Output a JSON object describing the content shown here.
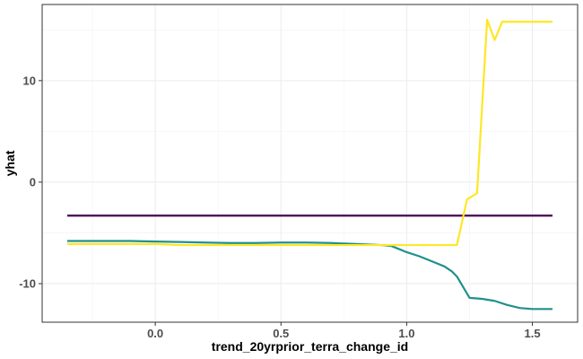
{
  "chart_data": {
    "type": "line",
    "title": "",
    "xlabel": "trend_20yrprior_terra_change_id",
    "ylabel": "yhat",
    "xlim": [
      -0.45,
      1.68
    ],
    "ylim": [
      -13.8,
      17.5
    ],
    "x_ticks": [
      0.0,
      0.5,
      1.0,
      1.5
    ],
    "x_tick_labels": [
      "0.0",
      "0.5",
      "1.0",
      "1.5"
    ],
    "y_ticks": [
      -10,
      0,
      10
    ],
    "y_tick_labels": [
      "-10",
      "0",
      "10"
    ],
    "grid": true,
    "legend": "none",
    "series": [
      {
        "color": "#440154",
        "x": [
          -0.35,
          1.58
        ],
        "y": [
          -3.3,
          -3.3
        ]
      },
      {
        "color": "#21908C",
        "x": [
          -0.35,
          -0.2,
          -0.1,
          0.0,
          0.1,
          0.2,
          0.3,
          0.4,
          0.5,
          0.55,
          0.6,
          0.7,
          0.8,
          0.9,
          0.94,
          0.96,
          1.0,
          1.05,
          1.1,
          1.15,
          1.18,
          1.2,
          1.25,
          1.3,
          1.35,
          1.4,
          1.45,
          1.5,
          1.55,
          1.58
        ],
        "y": [
          -5.8,
          -5.8,
          -5.8,
          -5.85,
          -5.9,
          -5.95,
          -6.0,
          -6.0,
          -5.95,
          -5.95,
          -5.95,
          -6.0,
          -6.1,
          -6.2,
          -6.3,
          -6.5,
          -6.9,
          -7.3,
          -7.8,
          -8.3,
          -8.8,
          -9.3,
          -11.4,
          -11.5,
          -11.7,
          -12.1,
          -12.4,
          -12.5,
          -12.5,
          -12.5
        ]
      },
      {
        "color": "#FDE725",
        "x": [
          -0.35,
          0.0,
          0.1,
          0.5,
          0.9,
          1.0,
          1.1,
          1.2,
          1.24,
          1.28,
          1.32,
          1.35,
          1.38,
          1.45,
          1.5,
          1.58
        ],
        "y": [
          -6.1,
          -6.1,
          -6.2,
          -6.2,
          -6.2,
          -6.2,
          -6.2,
          -6.2,
          -1.7,
          -1.1,
          16.0,
          14.0,
          15.8,
          15.8,
          15.8,
          15.8
        ]
      }
    ]
  }
}
